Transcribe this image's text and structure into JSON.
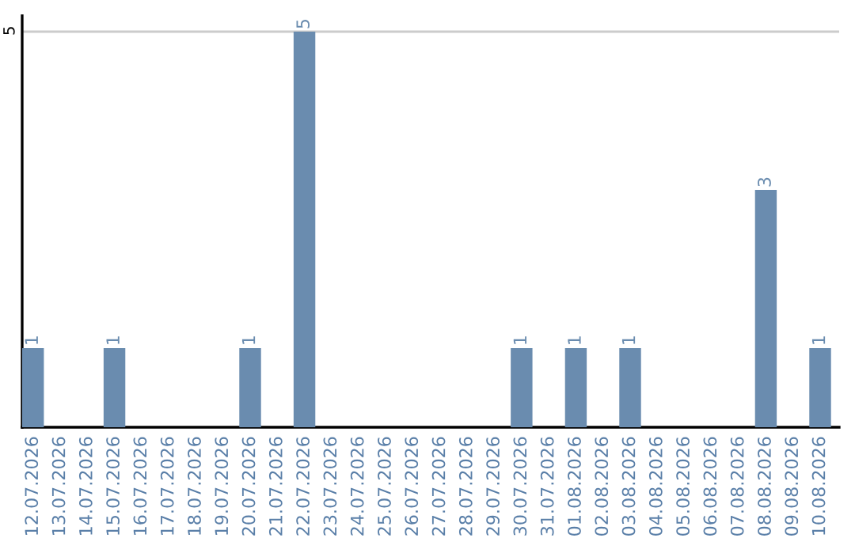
{
  "chart_data": {
    "type": "bar",
    "categories": [
      "12.07.2026",
      "13.07.2026",
      "14.07.2026",
      "15.07.2026",
      "16.07.2026",
      "17.07.2026",
      "18.07.2026",
      "19.07.2026",
      "20.07.2026",
      "21.07.2026",
      "22.07.2026",
      "23.07.2026",
      "24.07.2026",
      "25.07.2026",
      "26.07.2026",
      "27.07.2026",
      "28.07.2026",
      "29.07.2026",
      "30.07.2026",
      "31.07.2026",
      "01.08.2026",
      "02.08.2026",
      "03.08.2026",
      "04.08.2026",
      "05.08.2026",
      "06.08.2026",
      "07.08.2026",
      "08.08.2026",
      "09.08.2026",
      "10.08.2026"
    ],
    "values": [
      1,
      0,
      0,
      1,
      0,
      0,
      0,
      0,
      1,
      0,
      5,
      0,
      0,
      0,
      0,
      0,
      0,
      0,
      1,
      0,
      1,
      0,
      1,
      0,
      0,
      0,
      0,
      3,
      0,
      1
    ],
    "value_labels": [
      "1",
      null,
      null,
      "1",
      null,
      null,
      null,
      null,
      "1",
      null,
      "5",
      null,
      null,
      null,
      null,
      null,
      null,
      null,
      "1",
      null,
      "1",
      null,
      "1",
      null,
      null,
      null,
      null,
      "3",
      null,
      "1"
    ],
    "color": "#6a8caf",
    "ylim": [
      0,
      5.2
    ],
    "yticks": [
      5
    ],
    "grid": "y"
  }
}
